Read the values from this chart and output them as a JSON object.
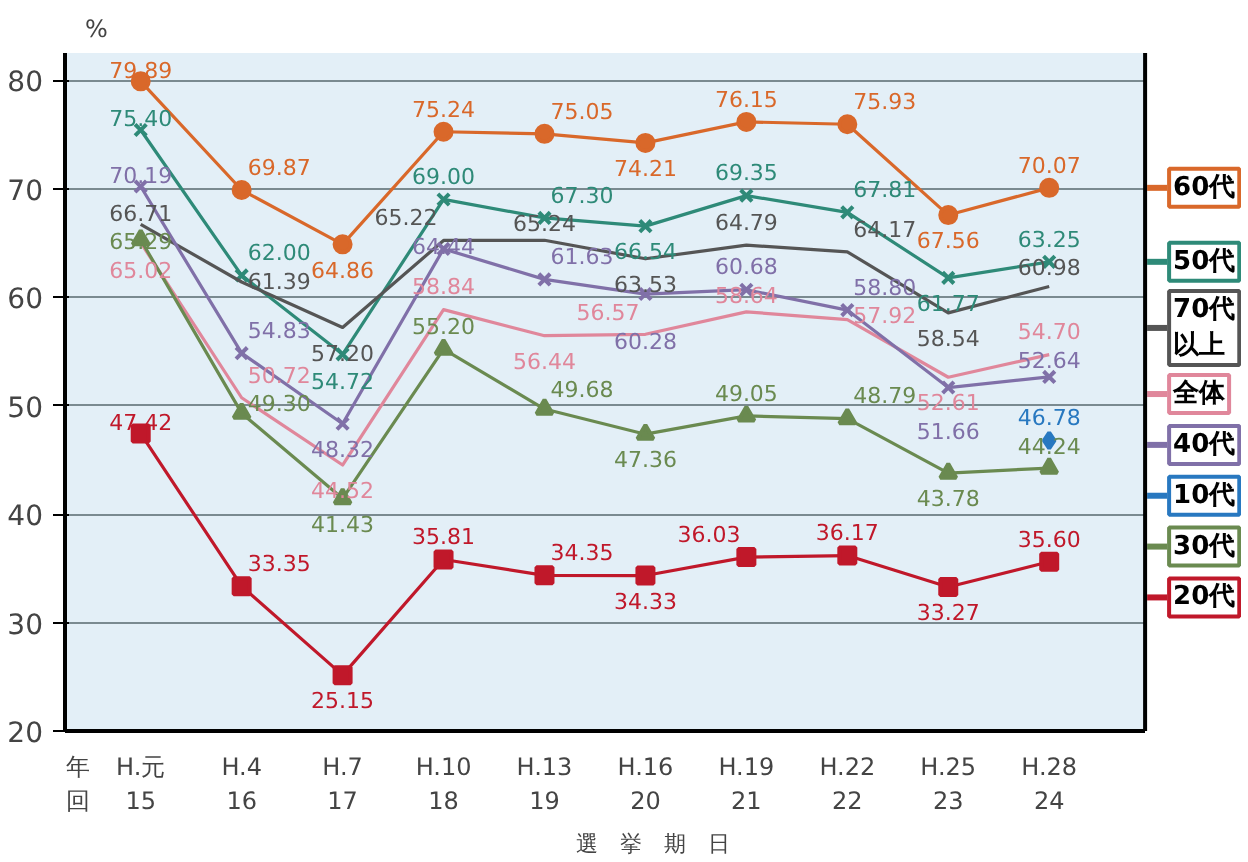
{
  "chart_data": {
    "type": "line",
    "ylabel": "%",
    "xlabel": "選　挙　期　日",
    "categories": [
      "H.元\n15",
      "H.4\n16",
      "H.7\n17",
      "H.10\n18",
      "H.13\n19",
      "H.16\n20",
      "H.19\n21",
      "H.22\n22",
      "H.25\n23",
      "H.28\n24"
    ],
    "series": [
      {
        "name": "60代",
        "color": "#d9682a",
        "marker": "circle",
        "values": [
          79.89,
          69.87,
          64.86,
          75.24,
          75.05,
          74.21,
          76.15,
          75.93,
          67.56,
          70.07
        ],
        "value_labels": [
          "79.89",
          "69.87",
          "64.86",
          "75.24",
          "75.05",
          "74.21",
          "76.15",
          "75.93",
          "67.56",
          "70.07"
        ]
      },
      {
        "name": "50代",
        "color": "#2e8a78",
        "marker": "cross",
        "values": [
          75.4,
          62.0,
          54.72,
          69.0,
          67.3,
          66.54,
          69.35,
          67.81,
          61.77,
          63.25
        ],
        "value_labels": [
          "75.40",
          "62.00",
          "54.72",
          "69.00",
          "67.30",
          "66.54",
          "69.35",
          "67.81",
          "61.77",
          "63.25"
        ]
      },
      {
        "name": "70代以上",
        "color": "#555555",
        "marker": "none",
        "values": [
          66.71,
          61.39,
          57.2,
          65.22,
          65.24,
          63.53,
          64.79,
          64.17,
          58.54,
          60.98
        ],
        "value_labels": [
          "66.71",
          "61.39",
          "57.20",
          "65.22",
          "65.24",
          "63.53",
          "64.79",
          "64.17",
          "58.54",
          "60.98"
        ]
      },
      {
        "name": "全体",
        "color": "#e0879b",
        "marker": "none",
        "values": [
          65.02,
          50.72,
          44.52,
          58.84,
          56.44,
          56.57,
          58.64,
          57.92,
          52.61,
          54.7
        ],
        "value_labels": [
          "65.02",
          "50.72",
          "44.52",
          "58.84",
          "56.44",
          "56.57",
          "58.64",
          "57.92",
          "52.61",
          "54.70"
        ]
      },
      {
        "name": "40代",
        "color": "#8070a8",
        "marker": "cross",
        "values": [
          70.19,
          54.83,
          48.32,
          64.44,
          61.63,
          60.28,
          60.68,
          58.8,
          51.66,
          52.64
        ],
        "value_labels": [
          "70.19",
          "54.83",
          "48.32",
          "64.44",
          "61.63",
          "60.28",
          "60.68",
          "58.80",
          "51.66",
          "52.64"
        ]
      },
      {
        "name": "10代",
        "color": "#2878c0",
        "marker": "diamond",
        "values": [
          null,
          null,
          null,
          null,
          null,
          null,
          null,
          null,
          null,
          46.78
        ],
        "value_labels": [
          null,
          null,
          null,
          null,
          null,
          null,
          null,
          null,
          null,
          "46.78"
        ]
      },
      {
        "name": "30代",
        "color": "#6a8a50",
        "marker": "triangle",
        "values": [
          65.29,
          49.3,
          41.43,
          55.2,
          49.68,
          47.36,
          49.05,
          48.79,
          43.78,
          44.24
        ],
        "value_labels": [
          "65.29",
          "49.30",
          "41.43",
          "55.20",
          "49.68",
          "47.36",
          "49.05",
          "48.79",
          "43.78",
          "44.24"
        ]
      },
      {
        "name": "20代",
        "color": "#c0182a",
        "marker": "square",
        "values": [
          47.42,
          33.35,
          25.15,
          35.81,
          34.35,
          34.33,
          36.03,
          36.17,
          33.27,
          35.6
        ],
        "value_labels": [
          "47.42",
          "33.35",
          "25.15",
          "35.81",
          "34.35",
          "34.33",
          "36.03",
          "36.17",
          "33.27",
          "35.60"
        ]
      }
    ],
    "ylim": [
      20,
      82.5
    ],
    "yticks": [
      20,
      30,
      40,
      50,
      60,
      70,
      80
    ],
    "grid": "y",
    "legend": "right",
    "annotations": [
      "年",
      "回"
    ]
  }
}
